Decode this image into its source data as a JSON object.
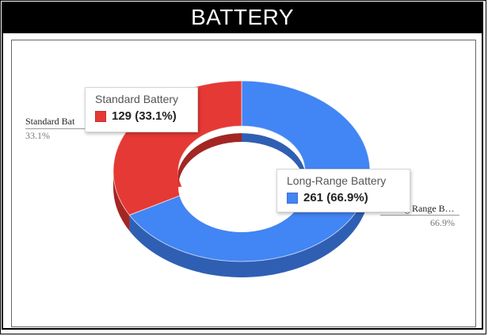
{
  "title": "BATTERY",
  "chart_data": {
    "type": "pie",
    "variant": "3d-donut",
    "categories": [
      "Standard Battery",
      "Long-Range Battery"
    ],
    "values": [
      129,
      261
    ],
    "percent_labels": [
      "33.1%",
      "66.9%"
    ],
    "colors": [
      "#e53935",
      "#4285f4"
    ],
    "side_colors": [
      "#a32623",
      "#2f5fb3"
    ],
    "outside_labels": [
      "Standard Bat",
      "g Range B…"
    ],
    "tooltips": [
      {
        "name": "Standard Battery",
        "value_text": "129 (33.1%)"
      },
      {
        "name": "Long-Range Battery",
        "value_text": "261 (66.9%)"
      }
    ]
  }
}
